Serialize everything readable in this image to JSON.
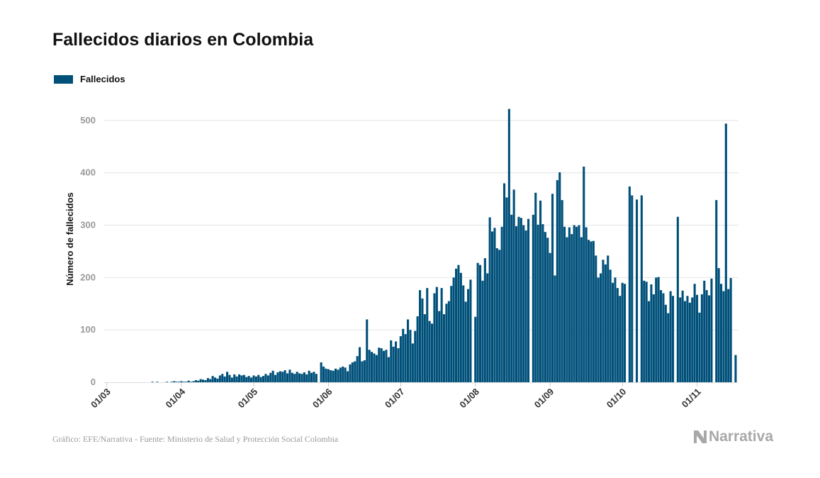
{
  "title": "Fallecidos diarios en Colombia",
  "legend": {
    "label": "Fallecidos",
    "color": "#00507a"
  },
  "source": "Gráfico: EFE/Narrativa - Fuente: Ministerio de Salud y Protección Social Colombia",
  "brand": "Narrativa",
  "colors": {
    "bar": "#00507a",
    "grid": "#e4e4e4",
    "axis": "#dddddd",
    "brand": "#a8a8a8"
  },
  "chart_data": {
    "type": "bar",
    "title": "Fallecidos diarios en Colombia",
    "ylabel": "Número de fallecidos",
    "xlabel": "",
    "ylim": [
      0,
      550
    ],
    "yticks": [
      0,
      100,
      200,
      300,
      400,
      500
    ],
    "grid": true,
    "legend_position": "top-left",
    "start_date": "2020-03-01",
    "xticks": [
      {
        "label": "01/03",
        "date": "2020-03-01"
      },
      {
        "label": "01/04",
        "date": "2020-04-01"
      },
      {
        "label": "01/05",
        "date": "2020-05-01"
      },
      {
        "label": "01/06",
        "date": "2020-06-01"
      },
      {
        "label": "01/07",
        "date": "2020-07-01"
      },
      {
        "label": "01/08",
        "date": "2020-08-01"
      },
      {
        "label": "01/09",
        "date": "2020-09-01"
      },
      {
        "label": "01/10",
        "date": "2020-10-01"
      },
      {
        "label": "01/11",
        "date": "2020-11-01"
      }
    ],
    "series": [
      {
        "name": "Fallecidos",
        "values": [
          0,
          0,
          0,
          0,
          0,
          0,
          0,
          0,
          0,
          0,
          0,
          0,
          0,
          0,
          0,
          0,
          0,
          0,
          0,
          1,
          0,
          1,
          0,
          0,
          0,
          1,
          0,
          1,
          2,
          1,
          1,
          2,
          1,
          1,
          3,
          1,
          2,
          4,
          3,
          6,
          5,
          4,
          8,
          6,
          12,
          9,
          7,
          13,
          16,
          11,
          20,
          14,
          9,
          15,
          11,
          15,
          13,
          14,
          10,
          12,
          9,
          13,
          11,
          14,
          10,
          12,
          16,
          13,
          18,
          22,
          14,
          19,
          21,
          20,
          23,
          17,
          24,
          18,
          16,
          20,
          17,
          16,
          19,
          15,
          22,
          18,
          20,
          16,
          0,
          38,
          30,
          26,
          25,
          23,
          22,
          26,
          24,
          28,
          30,
          28,
          21,
          34,
          38,
          40,
          50,
          67,
          40,
          42,
          120,
          62,
          58,
          55,
          52,
          66,
          65,
          60,
          62,
          48,
          80,
          68,
          78,
          65,
          88,
          102,
          92,
          120,
          100,
          74,
          98,
          126,
          176,
          160,
          130,
          180,
          117,
          112,
          170,
          182,
          136,
          180,
          130,
          150,
          155,
          184,
          200,
          217,
          224,
          209,
          185,
          154,
          178,
          196,
          0,
          125,
          228,
          224,
          194,
          237,
          208,
          315,
          288,
          295,
          256,
          253,
          297,
          380,
          353,
          522,
          320,
          368,
          298,
          316,
          314,
          300,
          290,
          312,
          0,
          320,
          362,
          301,
          347,
          302,
          287,
          276,
          247,
          360,
          204,
          386,
          401,
          348,
          297,
          277,
          296,
          283,
          300,
          297,
          300,
          277,
          412,
          296,
          272,
          269,
          270,
          242,
          200,
          208,
          234,
          225,
          242,
          215,
          190,
          200,
          180,
          165,
          190,
          188,
          0,
          374,
          357,
          0,
          349,
          0,
          357,
          194,
          192,
          155,
          187,
          168,
          200,
          201,
          176,
          170,
          148,
          132,
          174,
          165,
          0,
          316,
          162,
          175,
          155,
          165,
          152,
          162,
          188,
          167,
          133,
          168,
          194,
          176,
          166,
          198,
          0,
          348,
          218,
          188,
          174,
          494,
          178,
          199,
          0,
          52
        ]
      }
    ]
  }
}
